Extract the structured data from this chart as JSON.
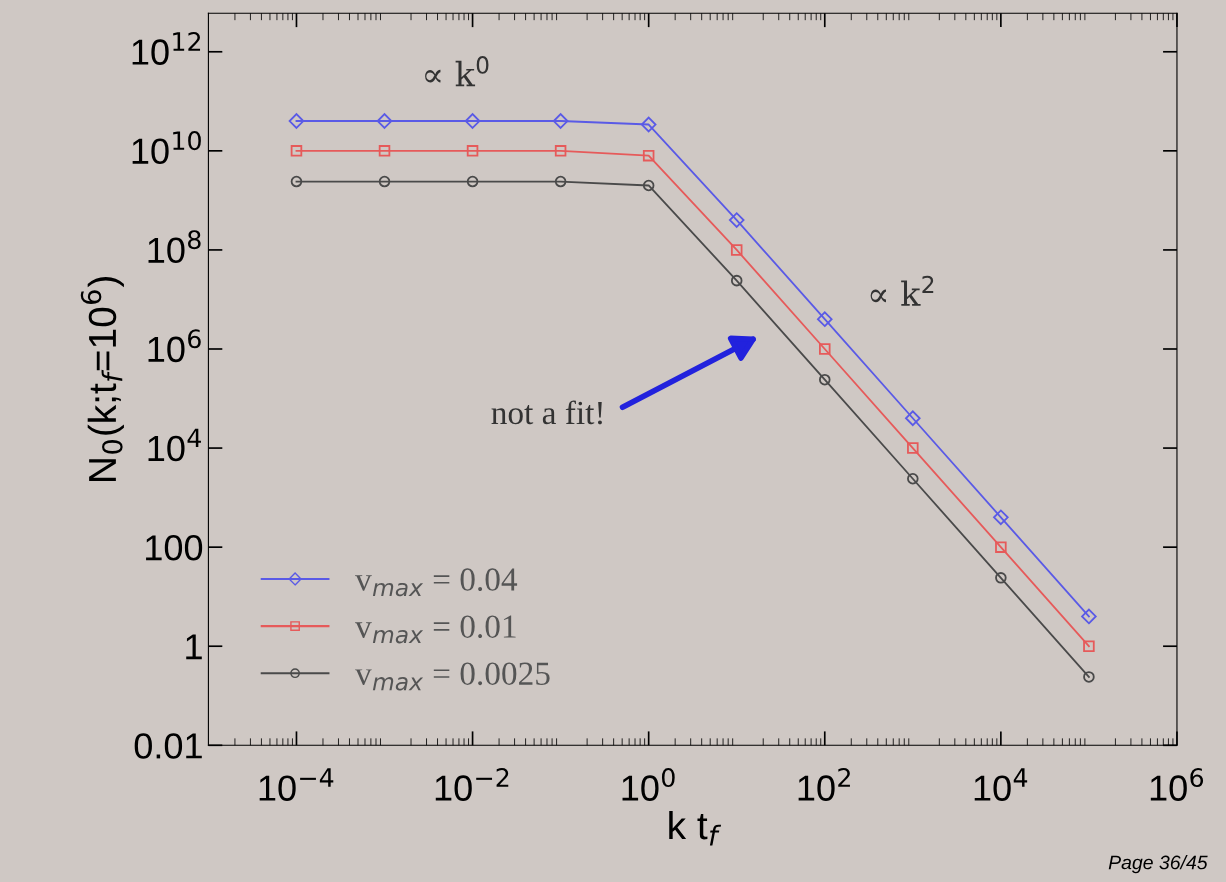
{
  "chart_data": {
    "type": "line",
    "xlabel": "k t$_{f}$",
    "ylabel": "N$_{0}$(k;t$_{f}$=10$^{6}$)",
    "x": [
      0.0001,
      0.001,
      0.01,
      0.1,
      1,
      10,
      100,
      1000,
      10000,
      100000
    ],
    "series": [
      {
        "name": "v$_{max}$ = 0.04",
        "color": "#5a5ae6",
        "marker": "diamond",
        "values": [
          40000000000.0,
          40000000000.0,
          40000000000.0,
          40000000000.0,
          34000000000.0,
          400000000.0,
          4000000.0,
          40000.0,
          400,
          4
        ]
      },
      {
        "name": "v$_{max}$ = 0.01",
        "color": "#e65a5a",
        "marker": "square",
        "values": [
          10000000000.0,
          10000000000.0,
          10000000000.0,
          10000000000.0,
          8000000000.0,
          100000000.0,
          1000000.0,
          10000.0,
          100,
          1
        ]
      },
      {
        "name": "v$_{max}$ = 0.0025",
        "color": "#4a4a4a",
        "marker": "circle",
        "values": [
          2400000000.0,
          2400000000.0,
          2400000000.0,
          2400000000.0,
          2000000000.0,
          24000000.0,
          240000.0,
          2400,
          24,
          0.24
        ]
      }
    ],
    "log": "xy",
    "xlim": [
      1e-05,
      1000000.0
    ],
    "ylim": [
      0.01,
      6000000000000.0
    ],
    "xticks": [
      {
        "value": 0.0001,
        "label": "10$^{−4}$"
      },
      {
        "value": 0.01,
        "label": "10$^{−2}$"
      },
      {
        "value": 1,
        "label": "10$^{0}$"
      },
      {
        "value": 100,
        "label": "10$^{2}$"
      },
      {
        "value": 10000,
        "label": "10$^{4}$"
      },
      {
        "value": 1000000,
        "label": "10$^{6}$"
      }
    ],
    "yticks": [
      0.01,
      1,
      100,
      {
        "value": 10000,
        "label": "10$^{4}$"
      },
      {
        "value": 1000000,
        "label": "10$^{6}$"
      },
      {
        "value": 100000000,
        "label": "10$^{8}$"
      },
      {
        "value": 10000000000,
        "label": "10$^{10}$"
      },
      {
        "value": 1000000000000,
        "label": "10$^{12}$"
      }
    ],
    "grid": false,
    "legend": "bottom left",
    "annotations": [
      "∝ k$^{0}$",
      "∝ k$^{2}$",
      "not a fit!",
      "Page 36/45"
    ]
  }
}
